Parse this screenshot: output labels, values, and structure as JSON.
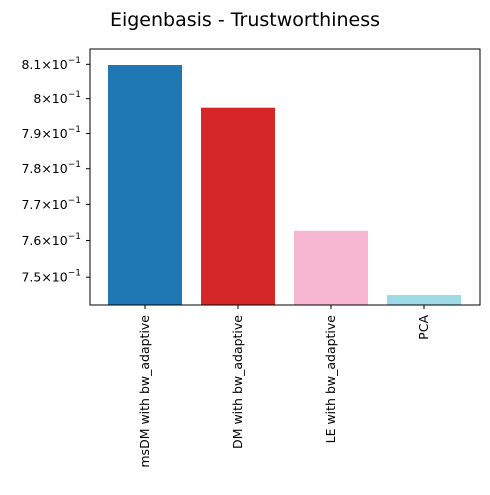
{
  "chart_data": {
    "type": "bar",
    "title": "Eigenbasis - Trustworthiness",
    "xlabel": "",
    "ylabel": "",
    "yscale": "log",
    "ylim": [
      0.7425,
      0.8145
    ],
    "grid": false,
    "categories": [
      "msDM with bw_adaptive",
      "DM with bw_adaptive",
      "LE with bw_adaptive",
      "PCA"
    ],
    "values": [
      0.8098,
      0.7974,
      0.7627,
      0.7452
    ],
    "colors": [
      "#1f77b4",
      "#d62728",
      "#f7b6d2",
      "#9edae5"
    ],
    "yticks": [
      {
        "value": 0.75,
        "mantissa": "7.5",
        "exp": "−1"
      },
      {
        "value": 0.76,
        "mantissa": "7.6",
        "exp": "−1"
      },
      {
        "value": 0.77,
        "mantissa": "7.7",
        "exp": "−1"
      },
      {
        "value": 0.78,
        "mantissa": "7.8",
        "exp": "−1"
      },
      {
        "value": 0.79,
        "mantissa": "7.9",
        "exp": "−1"
      },
      {
        "value": 0.8,
        "mantissa": "8",
        "exp": "−1"
      },
      {
        "value": 0.81,
        "mantissa": "8.1",
        "exp": "−1"
      }
    ],
    "tick_times": "×10"
  }
}
